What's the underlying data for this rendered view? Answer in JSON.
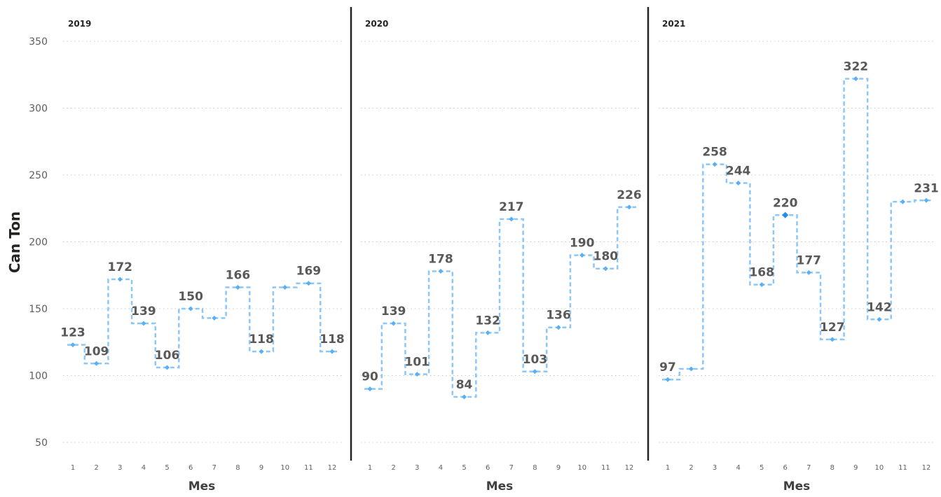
{
  "chart_data": {
    "type": "line",
    "ylabel": "Can Ton",
    "xlabel": "Mes",
    "ylim": [
      40,
      360
    ],
    "yticks": [
      50,
      100,
      150,
      200,
      250,
      300,
      350
    ],
    "grid": true,
    "categories": [
      1,
      2,
      3,
      4,
      5,
      6,
      7,
      8,
      9,
      10,
      11,
      12
    ],
    "panels": [
      {
        "title": "2019",
        "values": [
          123,
          109,
          172,
          139,
          106,
          150,
          143,
          166,
          118,
          166,
          169,
          118
        ],
        "labels": [
          "123",
          "109",
          "172",
          "139",
          "106",
          "150",
          "",
          "166",
          "118",
          "",
          "169",
          "118"
        ]
      },
      {
        "title": "2020",
        "values": [
          90,
          139,
          101,
          178,
          84,
          132,
          217,
          103,
          136,
          190,
          180,
          226
        ],
        "labels": [
          "90",
          "139",
          "101",
          "178",
          "84",
          "132",
          "217",
          "103",
          "136",
          "190",
          "180",
          "226"
        ]
      },
      {
        "title": "2021",
        "values": [
          97,
          105,
          258,
          244,
          168,
          220,
          177,
          127,
          322,
          142,
          230,
          231
        ],
        "labels": [
          "97",
          "",
          "258",
          "244",
          "168",
          "220",
          "177",
          "127",
          "322",
          "142",
          "",
          "231"
        ]
      }
    ],
    "highlight": {
      "panel": 2,
      "index": 5
    },
    "colors": {
      "line": "#8cc7f8",
      "marker": "#5ab0f5",
      "marker_active": "#1f8ef1"
    }
  }
}
